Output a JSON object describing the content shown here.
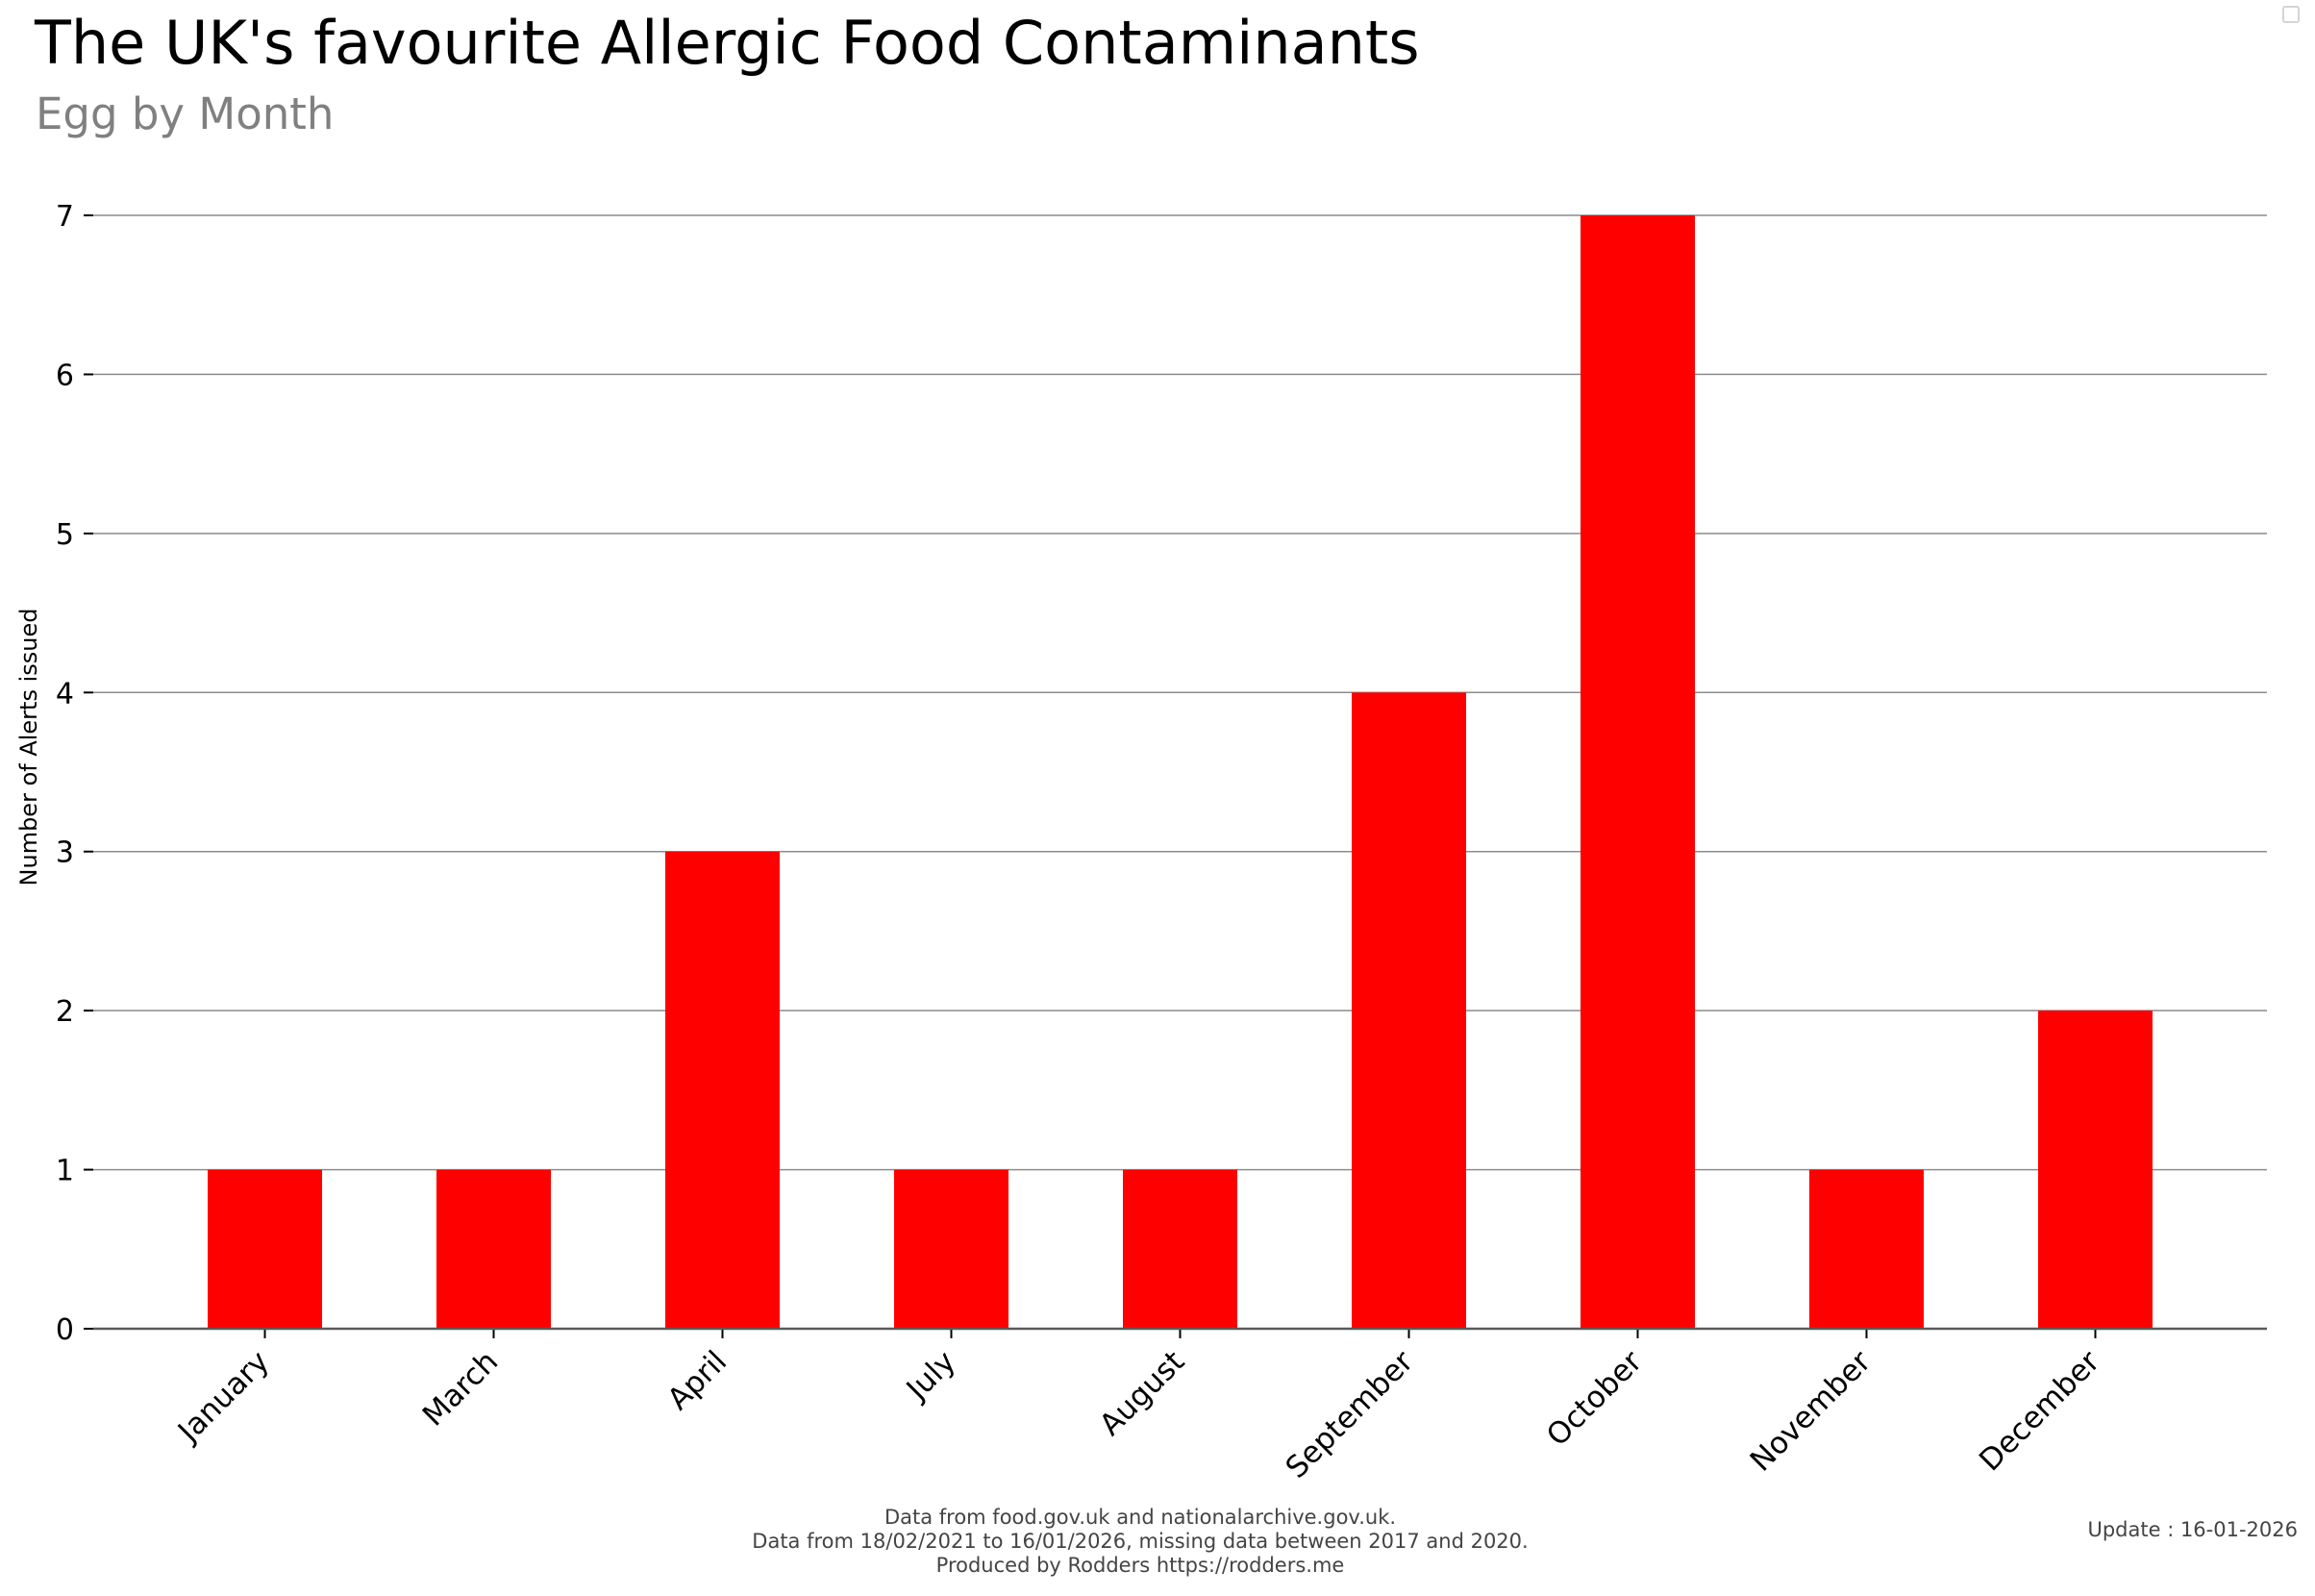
{
  "chart_data": {
    "type": "bar",
    "title": "The UK's favourite Allergic Food Contaminants",
    "subtitle": "Egg by Month",
    "xlabel": "",
    "ylabel": "Number of Alerts issued",
    "categories": [
      "January",
      "March",
      "April",
      "July",
      "August",
      "September",
      "October",
      "November",
      "December"
    ],
    "values": [
      1,
      1,
      3,
      1,
      1,
      4,
      7,
      1,
      2
    ],
    "ylim": [
      0,
      7
    ],
    "yticks": [
      "0",
      "1",
      "2",
      "3",
      "4",
      "5",
      "6",
      "7"
    ],
    "grid": true,
    "bar_color": "#ff0000",
    "grid_color": "#8c8c8c"
  },
  "footer": {
    "source_line1": "Data from food.gov.uk and nationalarchive.gov.uk.",
    "source_line2": "Data from 18/02/2021 to 16/01/2026, missing data between 2017 and 2020.",
    "source_line3": "Produced by Rodders https://rodders.me",
    "update": "Update : 16-01-2026"
  }
}
